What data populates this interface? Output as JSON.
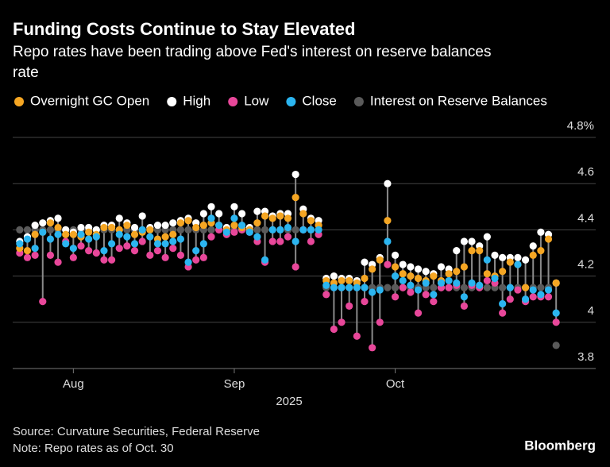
{
  "chart_data": {
    "type": "dot_range",
    "title": "Funding Costs Continue to Stay Elevated",
    "subtitle": [
      "Repo rates have been trading above Fed's interest on reserve balances",
      "rate"
    ],
    "x_label": "2025",
    "source": "Source: Curvature Securities, Federal Reserve",
    "note": "Note: Repo rates as of Oct. 30",
    "brand": "Bloomberg",
    "categories": [
      null,
      null,
      null,
      null,
      null,
      null,
      null,
      "Aug",
      null,
      null,
      null,
      null,
      null,
      null,
      null,
      null,
      null,
      null,
      null,
      null,
      null,
      null,
      null,
      null,
      null,
      null,
      null,
      null,
      "Sep",
      null,
      null,
      null,
      null,
      null,
      null,
      null,
      null,
      null,
      null,
      null,
      null,
      null,
      null,
      null,
      null,
      null,
      null,
      null,
      null,
      "Oct",
      null,
      null,
      null,
      null,
      null,
      null,
      null,
      null,
      null,
      null,
      null,
      null,
      null,
      null,
      null,
      null,
      null,
      null,
      null,
      null,
      null
    ],
    "series": [
      {
        "name": "Overnight GC Open",
        "color": "#f5a623",
        "values": [
          4.32,
          4.31,
          4.38,
          4.39,
          4.43,
          4.41,
          4.38,
          4.38,
          4.37,
          4.39,
          4.38,
          4.41,
          4.41,
          4.4,
          4.42,
          4.38,
          4.39,
          4.4,
          4.36,
          4.37,
          4.38,
          4.43,
          4.44,
          4.41,
          4.42,
          4.43,
          4.42,
          4.4,
          4.42,
          4.41,
          4.4,
          4.43,
          4.46,
          4.45,
          4.46,
          4.45,
          4.54,
          4.47,
          4.44,
          4.42,
          4.18,
          4.17,
          4.18,
          4.18,
          4.17,
          4.19,
          4.23,
          4.27,
          4.44,
          4.24,
          4.21,
          4.2,
          4.19,
          4.18,
          4.2,
          4.18,
          4.21,
          4.22,
          4.24,
          4.31,
          4.31,
          4.21,
          4.2,
          4.22,
          4.26,
          4.25,
          4.15,
          4.29,
          4.31,
          4.36,
          4.17
        ]
      },
      {
        "name": "High",
        "color": "#ffffff",
        "values": [
          4.35,
          4.37,
          4.42,
          4.43,
          4.44,
          4.45,
          4.4,
          4.39,
          4.41,
          4.41,
          4.4,
          4.42,
          4.42,
          4.45,
          4.43,
          4.41,
          4.46,
          4.41,
          4.42,
          4.42,
          4.43,
          4.44,
          4.45,
          4.43,
          4.47,
          4.5,
          4.47,
          4.41,
          4.5,
          4.47,
          4.41,
          4.48,
          4.48,
          4.46,
          4.47,
          4.47,
          4.64,
          4.49,
          4.45,
          4.44,
          4.19,
          4.2,
          4.19,
          4.19,
          4.18,
          4.26,
          4.25,
          4.28,
          4.6,
          4.29,
          4.25,
          4.24,
          4.23,
          4.22,
          4.21,
          4.24,
          4.23,
          4.31,
          4.35,
          4.35,
          4.33,
          4.37,
          4.29,
          4.28,
          4.28,
          4.28,
          4.27,
          4.33,
          4.39,
          4.38,
          4.17
        ]
      },
      {
        "name": "Low",
        "color": "#e8479a",
        "values": [
          4.3,
          4.28,
          4.29,
          4.09,
          4.29,
          4.26,
          4.35,
          4.28,
          4.33,
          4.31,
          4.3,
          4.27,
          4.27,
          4.32,
          4.33,
          4.31,
          4.35,
          4.29,
          4.31,
          4.28,
          4.32,
          4.29,
          4.24,
          4.27,
          4.28,
          4.37,
          4.4,
          4.38,
          4.39,
          4.4,
          4.39,
          4.35,
          4.26,
          4.35,
          4.35,
          4.37,
          4.24,
          4.4,
          4.35,
          4.38,
          4.12,
          3.97,
          4.0,
          4.07,
          3.94,
          4.09,
          3.89,
          4.0,
          4.25,
          4.11,
          4.15,
          4.13,
          4.04,
          4.12,
          4.09,
          4.15,
          4.15,
          4.16,
          4.07,
          4.16,
          4.15,
          4.18,
          4.17,
          4.04,
          4.1,
          4.14,
          4.09,
          4.11,
          4.11,
          4.11,
          4.0
        ]
      },
      {
        "name": "Close",
        "color": "#2bb5f0",
        "values": [
          4.34,
          4.36,
          4.32,
          4.39,
          4.36,
          4.38,
          4.34,
          4.32,
          4.38,
          4.36,
          4.37,
          4.31,
          4.34,
          4.38,
          4.37,
          4.34,
          4.4,
          4.37,
          4.34,
          4.34,
          4.35,
          4.36,
          4.26,
          4.31,
          4.34,
          4.45,
          4.42,
          4.39,
          4.45,
          4.42,
          4.39,
          4.37,
          4.27,
          4.4,
          4.4,
          4.41,
          4.35,
          4.4,
          4.4,
          4.4,
          4.16,
          4.15,
          4.15,
          4.15,
          4.15,
          4.15,
          4.13,
          4.14,
          4.35,
          4.2,
          4.18,
          4.16,
          4.14,
          4.17,
          4.12,
          4.17,
          4.18,
          4.17,
          4.11,
          4.17,
          4.16,
          4.27,
          4.19,
          4.08,
          4.15,
          4.25,
          4.1,
          4.14,
          4.12,
          4.14,
          4.04
        ]
      },
      {
        "name": "Interest on Reserve Balances",
        "color": "#5a5a5a",
        "values": [
          4.4,
          4.4,
          4.4,
          4.4,
          4.4,
          4.4,
          4.4,
          4.4,
          4.4,
          4.4,
          4.4,
          4.4,
          4.4,
          4.4,
          4.4,
          4.4,
          4.4,
          4.4,
          4.4,
          4.4,
          4.4,
          4.4,
          4.4,
          4.4,
          4.4,
          4.4,
          4.4,
          4.4,
          4.4,
          4.4,
          4.4,
          4.4,
          4.4,
          4.4,
          4.4,
          4.4,
          4.4,
          4.4,
          4.4,
          4.4,
          4.15,
          4.15,
          4.15,
          4.15,
          4.15,
          4.15,
          4.15,
          4.15,
          4.15,
          4.15,
          4.15,
          4.15,
          4.15,
          4.15,
          4.15,
          4.15,
          4.15,
          4.15,
          4.15,
          4.15,
          4.15,
          4.15,
          4.15,
          4.15,
          4.15,
          4.15,
          4.15,
          4.15,
          4.15,
          4.15,
          3.9
        ]
      }
    ],
    "ylim": [
      3.8,
      4.8
    ],
    "yticks": [
      3.8,
      4.0,
      4.2,
      4.4,
      4.6,
      {
        "value": 4.8,
        "label": "4.8%"
      }
    ],
    "grid": true
  }
}
